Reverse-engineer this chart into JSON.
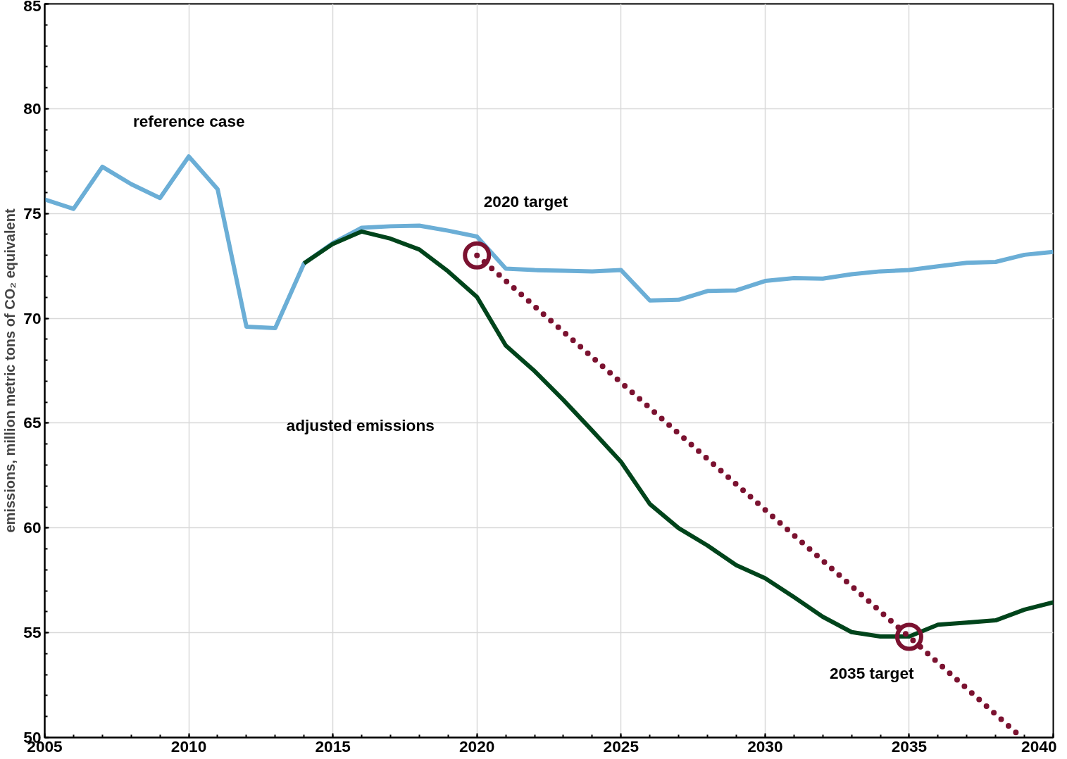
{
  "chart_data": {
    "type": "line",
    "ylabel": "emissions, million metric tons of CO₂ equivalent",
    "xlim": [
      2005,
      2040
    ],
    "xticks": [
      2005,
      2010,
      2015,
      2020,
      2025,
      2030,
      2035,
      2040
    ],
    "ylim": [
      50,
      85
    ],
    "yticks": [
      50,
      55,
      60,
      65,
      70,
      75,
      80,
      85
    ],
    "grid": true,
    "series": [
      {
        "color": "#6baed6",
        "x": [
          2005,
          2006,
          2007,
          2008,
          2009,
          2010,
          2011,
          2012,
          2013,
          2014,
          2015,
          2016,
          2017,
          2018,
          2019,
          2020,
          2021,
          2022,
          2023,
          2024,
          2025,
          2026,
          2027,
          2028,
          2029,
          2030,
          2031,
          2032,
          2033,
          2034,
          2035,
          2036,
          2037,
          2038,
          2039,
          2040
        ],
        "values": [
          75.67,
          75.22,
          77.23,
          76.4,
          75.74,
          77.72,
          76.16,
          69.6,
          69.53,
          72.62,
          73.59,
          74.32,
          74.39,
          74.42,
          74.18,
          73.9,
          72.37,
          72.3,
          72.27,
          72.24,
          72.3,
          70.85,
          70.88,
          71.3,
          71.33,
          71.78,
          71.92,
          71.89,
          72.1,
          72.24,
          72.3,
          72.48,
          72.65,
          72.69,
          73.03,
          73.17
        ],
        "line_style": "solid",
        "marker": "none"
      },
      {
        "color": "#00441b",
        "x": [
          2014,
          2015,
          2016,
          2017,
          2018,
          2019,
          2020,
          2021,
          2022,
          2023,
          2024,
          2025,
          2026,
          2027,
          2028,
          2029,
          2030,
          2031,
          2032,
          2033,
          2034,
          2035,
          2036,
          2037,
          2038,
          2039,
          2040
        ],
        "values": [
          72.62,
          73.55,
          74.14,
          73.8,
          73.28,
          72.24,
          71.02,
          68.7,
          67.48,
          66.1,
          64.64,
          63.15,
          61.14,
          59.99,
          59.16,
          58.22,
          57.6,
          56.7,
          55.76,
          55.03,
          54.82,
          54.82,
          55.38,
          55.48,
          55.59,
          56.1,
          56.45
        ],
        "line_style": "solid",
        "marker": "none"
      },
      {
        "color": "#7b1230",
        "x": [
          2020,
          2035,
          2038.9
        ],
        "values": [
          73.0,
          54.8,
          50.0
        ],
        "line_style": "dotted",
        "marker": "none"
      },
      {
        "type": "scatter",
        "color": "#7b1230",
        "x": [
          2020,
          2035
        ],
        "values": [
          73.0,
          54.8
        ],
        "marker": "circle"
      }
    ],
    "annotations": [
      "reference case",
      "2020 target",
      "adjusted emissions",
      "2035 target"
    ]
  }
}
